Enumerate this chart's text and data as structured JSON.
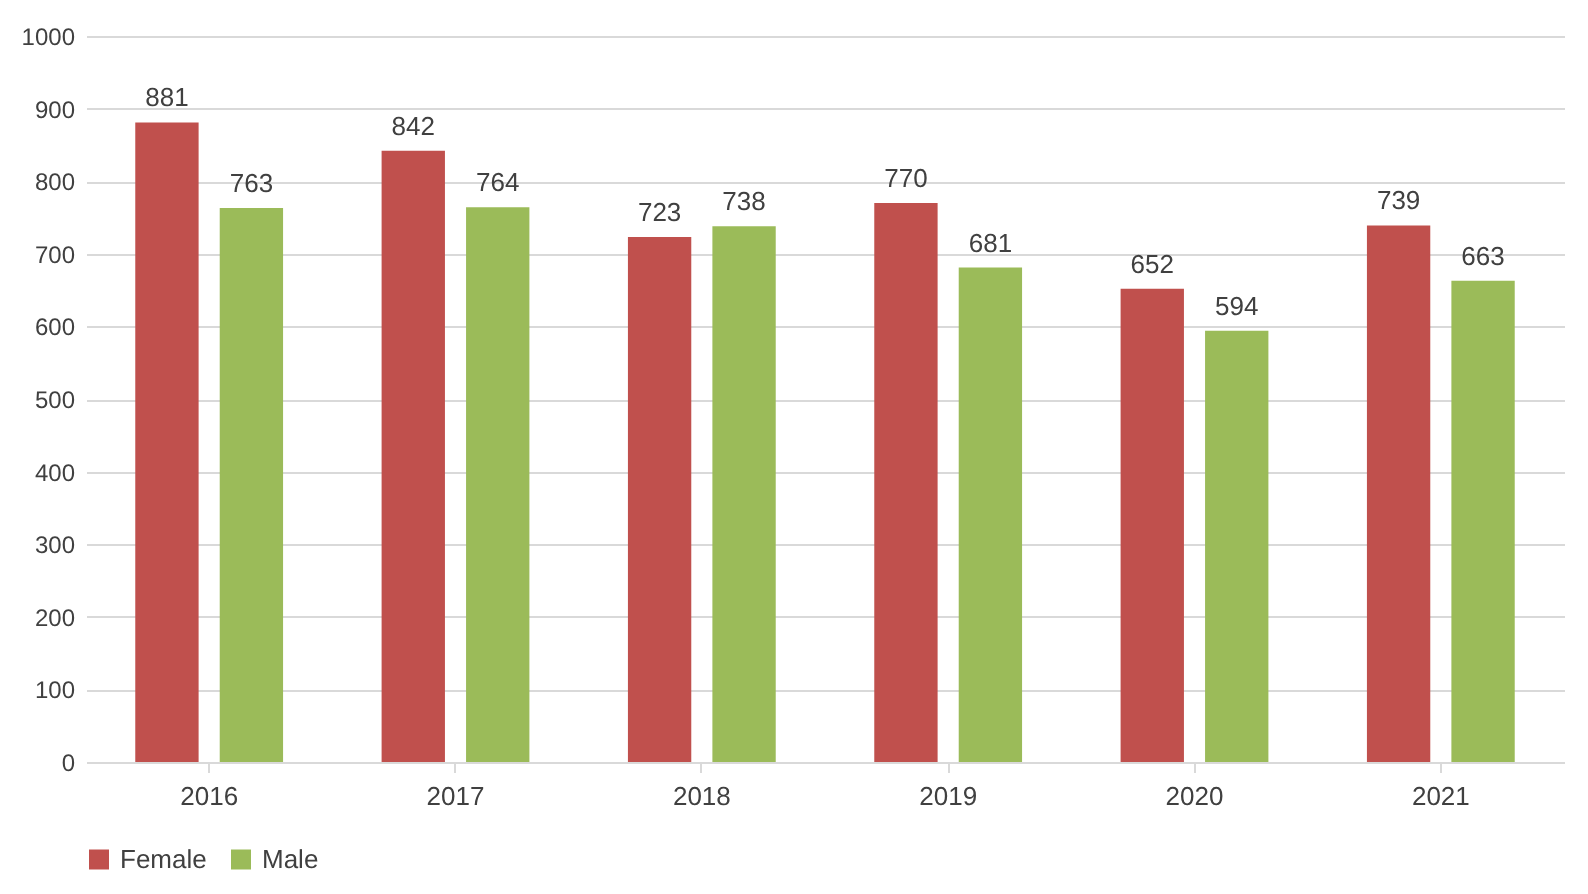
{
  "chart_data": {
    "type": "bar",
    "categories": [
      "2016",
      "2017",
      "2018",
      "2019",
      "2020",
      "2021"
    ],
    "series": [
      {
        "name": "Female",
        "color": "#c0504d",
        "values": [
          881,
          842,
          723,
          770,
          652,
          739
        ]
      },
      {
        "name": "Male",
        "color": "#9bbb59",
        "values": [
          763,
          764,
          738,
          681,
          594,
          663
        ]
      }
    ],
    "ylim": [
      0,
      1000
    ],
    "yticks": [
      0,
      100,
      200,
      300,
      400,
      500,
      600,
      700,
      800,
      900,
      1000
    ],
    "grid": "y",
    "legend": "bottom",
    "data_labels": true
  }
}
